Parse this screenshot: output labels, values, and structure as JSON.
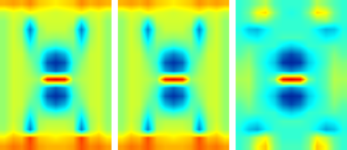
{
  "chart_data": [
    {
      "type": "heatmap",
      "tick_labels": false,
      "zlim": [
        0,
        1
      ],
      "cells": [
        [
          0.7,
          0.72,
          0.7,
          0.74,
          0.68,
          0.66,
          0.64,
          0.66,
          0.68,
          0.74,
          0.7,
          0.72,
          0.7
        ],
        [
          0.56,
          0.6,
          0.58,
          0.62,
          0.6,
          0.59,
          0.58,
          0.59,
          0.6,
          0.62,
          0.58,
          0.6,
          0.56
        ],
        [
          0.52,
          0.58,
          0.55,
          0.38,
          0.57,
          0.58,
          0.58,
          0.58,
          0.57,
          0.38,
          0.55,
          0.58,
          0.52
        ],
        [
          0.52,
          0.58,
          0.52,
          0.2,
          0.52,
          0.57,
          0.57,
          0.57,
          0.52,
          0.2,
          0.52,
          0.58,
          0.52
        ],
        [
          0.52,
          0.58,
          0.53,
          0.3,
          0.52,
          0.53,
          0.52,
          0.53,
          0.52,
          0.3,
          0.53,
          0.58,
          0.52
        ],
        [
          0.52,
          0.58,
          0.55,
          0.4,
          0.49,
          0.45,
          0.42,
          0.45,
          0.49,
          0.4,
          0.55,
          0.58,
          0.52
        ],
        [
          0.52,
          0.58,
          0.57,
          0.47,
          0.45,
          0.28,
          0.2,
          0.28,
          0.45,
          0.47,
          0.57,
          0.58,
          0.52
        ],
        [
          0.52,
          0.58,
          0.57,
          0.51,
          0.42,
          0.16,
          0.1,
          0.16,
          0.42,
          0.51,
          0.57,
          0.58,
          0.52
        ],
        [
          0.52,
          0.58,
          0.57,
          0.53,
          0.45,
          0.26,
          0.18,
          0.26,
          0.45,
          0.53,
          0.57,
          0.58,
          0.52
        ],
        [
          0.52,
          0.58,
          0.57,
          0.55,
          0.52,
          0.88,
          0.92,
          0.88,
          0.52,
          0.55,
          0.57,
          0.58,
          0.52
        ],
        [
          0.52,
          0.58,
          0.57,
          0.53,
          0.45,
          0.26,
          0.18,
          0.26,
          0.45,
          0.53,
          0.57,
          0.58,
          0.52
        ],
        [
          0.52,
          0.58,
          0.57,
          0.51,
          0.42,
          0.16,
          0.1,
          0.16,
          0.42,
          0.51,
          0.57,
          0.58,
          0.52
        ],
        [
          0.52,
          0.58,
          0.57,
          0.47,
          0.45,
          0.28,
          0.2,
          0.28,
          0.45,
          0.47,
          0.57,
          0.58,
          0.52
        ],
        [
          0.52,
          0.58,
          0.55,
          0.4,
          0.49,
          0.45,
          0.42,
          0.45,
          0.49,
          0.4,
          0.55,
          0.58,
          0.52
        ],
        [
          0.52,
          0.58,
          0.53,
          0.3,
          0.53,
          0.55,
          0.55,
          0.55,
          0.53,
          0.3,
          0.53,
          0.58,
          0.52
        ],
        [
          0.53,
          0.6,
          0.53,
          0.2,
          0.55,
          0.58,
          0.58,
          0.58,
          0.55,
          0.2,
          0.53,
          0.6,
          0.53
        ],
        [
          0.64,
          0.7,
          0.68,
          0.82,
          0.68,
          0.66,
          0.64,
          0.66,
          0.68,
          0.82,
          0.68,
          0.7,
          0.64
        ],
        [
          0.72,
          0.76,
          0.74,
          0.8,
          0.72,
          0.7,
          0.7,
          0.7,
          0.72,
          0.8,
          0.74,
          0.76,
          0.72
        ]
      ]
    },
    {
      "type": "heatmap",
      "tick_labels": false,
      "zlim": [
        0,
        1
      ],
      "cells": [
        [
          0.7,
          0.72,
          0.7,
          0.73,
          0.68,
          0.66,
          0.64,
          0.66,
          0.68,
          0.73,
          0.7,
          0.72,
          0.7
        ],
        [
          0.56,
          0.6,
          0.58,
          0.62,
          0.6,
          0.59,
          0.58,
          0.59,
          0.6,
          0.62,
          0.58,
          0.6,
          0.56
        ],
        [
          0.52,
          0.58,
          0.55,
          0.39,
          0.57,
          0.58,
          0.58,
          0.58,
          0.57,
          0.39,
          0.55,
          0.58,
          0.52
        ],
        [
          0.52,
          0.58,
          0.52,
          0.21,
          0.52,
          0.57,
          0.57,
          0.57,
          0.52,
          0.21,
          0.52,
          0.58,
          0.52
        ],
        [
          0.52,
          0.58,
          0.53,
          0.31,
          0.52,
          0.53,
          0.52,
          0.53,
          0.52,
          0.31,
          0.53,
          0.58,
          0.52
        ],
        [
          0.52,
          0.58,
          0.55,
          0.41,
          0.49,
          0.45,
          0.42,
          0.45,
          0.49,
          0.41,
          0.55,
          0.58,
          0.52
        ],
        [
          0.52,
          0.58,
          0.57,
          0.47,
          0.45,
          0.29,
          0.21,
          0.29,
          0.45,
          0.47,
          0.57,
          0.58,
          0.52
        ],
        [
          0.52,
          0.58,
          0.57,
          0.51,
          0.42,
          0.17,
          0.11,
          0.17,
          0.42,
          0.51,
          0.57,
          0.58,
          0.52
        ],
        [
          0.52,
          0.58,
          0.57,
          0.53,
          0.45,
          0.27,
          0.19,
          0.27,
          0.45,
          0.53,
          0.57,
          0.58,
          0.52
        ],
        [
          0.52,
          0.58,
          0.57,
          0.55,
          0.52,
          0.87,
          0.91,
          0.87,
          0.52,
          0.55,
          0.57,
          0.58,
          0.52
        ],
        [
          0.52,
          0.58,
          0.57,
          0.53,
          0.45,
          0.27,
          0.19,
          0.27,
          0.45,
          0.53,
          0.57,
          0.58,
          0.52
        ],
        [
          0.52,
          0.58,
          0.57,
          0.51,
          0.42,
          0.17,
          0.11,
          0.17,
          0.42,
          0.51,
          0.57,
          0.58,
          0.52
        ],
        [
          0.52,
          0.58,
          0.57,
          0.47,
          0.45,
          0.29,
          0.21,
          0.29,
          0.45,
          0.47,
          0.57,
          0.58,
          0.52
        ],
        [
          0.52,
          0.58,
          0.55,
          0.41,
          0.49,
          0.45,
          0.42,
          0.45,
          0.49,
          0.41,
          0.55,
          0.58,
          0.52
        ],
        [
          0.52,
          0.58,
          0.53,
          0.31,
          0.53,
          0.55,
          0.55,
          0.55,
          0.53,
          0.31,
          0.53,
          0.58,
          0.52
        ],
        [
          0.53,
          0.6,
          0.53,
          0.21,
          0.55,
          0.58,
          0.58,
          0.58,
          0.55,
          0.21,
          0.53,
          0.6,
          0.53
        ],
        [
          0.64,
          0.7,
          0.68,
          0.8,
          0.68,
          0.66,
          0.64,
          0.66,
          0.68,
          0.8,
          0.68,
          0.7,
          0.64
        ],
        [
          0.72,
          0.76,
          0.74,
          0.79,
          0.72,
          0.7,
          0.7,
          0.7,
          0.72,
          0.79,
          0.74,
          0.76,
          0.72
        ]
      ]
    },
    {
      "type": "heatmap",
      "tick_labels": false,
      "zlim": [
        0,
        1
      ],
      "cells": [
        [
          0.42,
          0.45,
          0.5,
          0.55,
          0.45,
          0.42,
          0.42,
          0.42,
          0.45,
          0.55,
          0.5,
          0.45,
          0.42
        ],
        [
          0.42,
          0.48,
          0.62,
          0.66,
          0.5,
          0.42,
          0.4,
          0.42,
          0.5,
          0.66,
          0.62,
          0.48,
          0.42
        ],
        [
          0.42,
          0.45,
          0.52,
          0.5,
          0.44,
          0.42,
          0.42,
          0.42,
          0.44,
          0.5,
          0.52,
          0.45,
          0.42
        ],
        [
          0.4,
          0.3,
          0.28,
          0.36,
          0.42,
          0.42,
          0.42,
          0.42,
          0.42,
          0.36,
          0.28,
          0.3,
          0.4
        ],
        [
          0.42,
          0.38,
          0.36,
          0.4,
          0.42,
          0.44,
          0.44,
          0.44,
          0.42,
          0.4,
          0.36,
          0.38,
          0.42
        ],
        [
          0.44,
          0.46,
          0.44,
          0.42,
          0.42,
          0.36,
          0.32,
          0.36,
          0.42,
          0.42,
          0.44,
          0.46,
          0.44
        ],
        [
          0.46,
          0.5,
          0.44,
          0.4,
          0.34,
          0.2,
          0.14,
          0.2,
          0.34,
          0.4,
          0.44,
          0.5,
          0.46
        ],
        [
          0.5,
          0.52,
          0.44,
          0.38,
          0.3,
          0.12,
          0.08,
          0.12,
          0.3,
          0.38,
          0.44,
          0.52,
          0.5
        ],
        [
          0.52,
          0.54,
          0.46,
          0.4,
          0.36,
          0.28,
          0.22,
          0.28,
          0.36,
          0.4,
          0.46,
          0.54,
          0.52
        ],
        [
          0.54,
          0.55,
          0.46,
          0.42,
          0.5,
          0.88,
          0.92,
          0.88,
          0.5,
          0.42,
          0.46,
          0.55,
          0.54
        ],
        [
          0.52,
          0.54,
          0.46,
          0.4,
          0.36,
          0.28,
          0.22,
          0.28,
          0.36,
          0.4,
          0.46,
          0.54,
          0.52
        ],
        [
          0.5,
          0.52,
          0.44,
          0.38,
          0.3,
          0.12,
          0.08,
          0.12,
          0.3,
          0.38,
          0.44,
          0.52,
          0.5
        ],
        [
          0.46,
          0.5,
          0.44,
          0.4,
          0.34,
          0.2,
          0.14,
          0.2,
          0.34,
          0.4,
          0.44,
          0.5,
          0.46
        ],
        [
          0.44,
          0.46,
          0.44,
          0.42,
          0.42,
          0.36,
          0.32,
          0.36,
          0.42,
          0.42,
          0.44,
          0.46,
          0.44
        ],
        [
          0.42,
          0.38,
          0.36,
          0.4,
          0.42,
          0.44,
          0.44,
          0.44,
          0.42,
          0.4,
          0.36,
          0.38,
          0.42
        ],
        [
          0.4,
          0.3,
          0.26,
          0.36,
          0.42,
          0.42,
          0.42,
          0.42,
          0.42,
          0.36,
          0.26,
          0.3,
          0.4
        ],
        [
          0.42,
          0.46,
          0.56,
          0.62,
          0.48,
          0.42,
          0.42,
          0.42,
          0.48,
          0.62,
          0.56,
          0.46,
          0.42
        ],
        [
          0.42,
          0.48,
          0.62,
          0.68,
          0.5,
          0.44,
          0.44,
          0.44,
          0.5,
          0.68,
          0.62,
          0.48,
          0.42
        ]
      ]
    }
  ]
}
